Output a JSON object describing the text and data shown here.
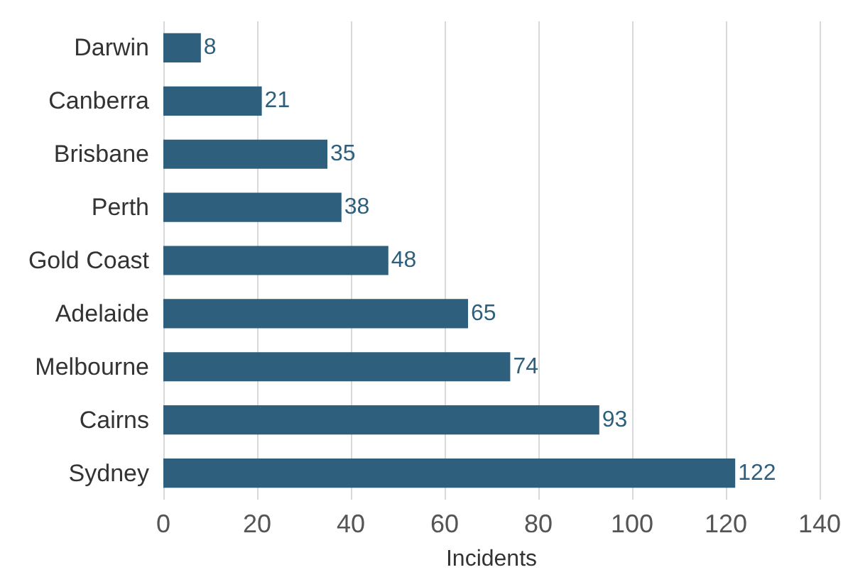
{
  "chart_data": {
    "type": "bar",
    "orientation": "horizontal",
    "xlabel": "Incidents",
    "categories": [
      "Darwin",
      "Canberra",
      "Brisbane",
      "Perth",
      "Gold Coast",
      "Adelaide",
      "Melbourne",
      "Cairns",
      "Sydney"
    ],
    "values": [
      8,
      21,
      35,
      38,
      48,
      65,
      74,
      93,
      122
    ],
    "color": "#2e5f7c",
    "xlim": [
      0,
      140
    ],
    "xticks": [
      0,
      20,
      40,
      60,
      80,
      100,
      120,
      140
    ],
    "grid": "x",
    "data_labels": true
  }
}
